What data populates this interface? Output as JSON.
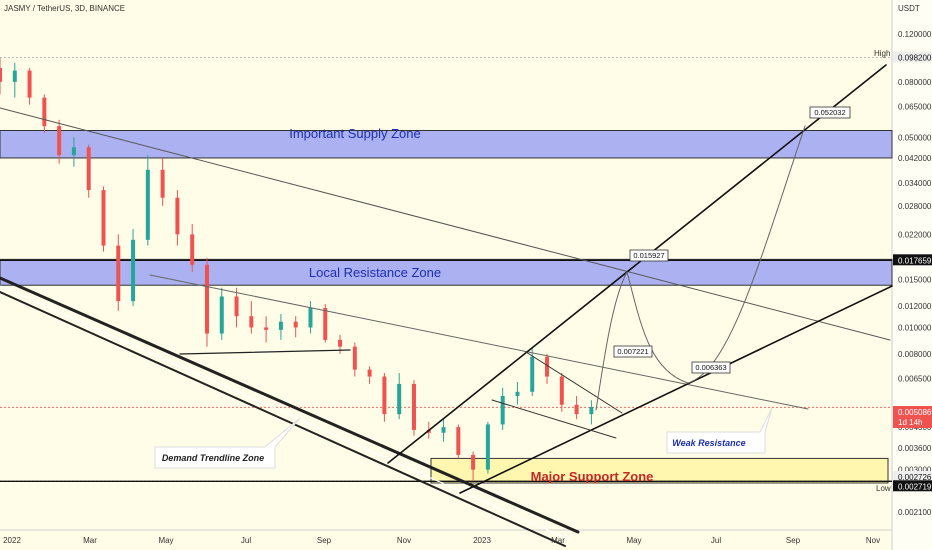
{
  "chart_data": {
    "type": "candlestick",
    "title": "JASMY / TetherUS, 3D, BINANCE",
    "currency": "USDT",
    "y_scale": "log",
    "ylim": [
      0.0018,
      0.16
    ],
    "y_ticks": [
      "0.120000",
      "0.098200",
      "0.080000",
      "0.065000",
      "0.050000",
      "0.042000",
      "0.034000",
      "0.028000",
      "0.022000",
      "0.017659",
      "0.015000",
      "0.012000",
      "0.010000",
      "0.008000",
      "0.006500",
      "0.005086",
      "0.004300",
      "0.003600",
      "0.003000",
      "0.002726",
      "0.002719",
      "0.002100"
    ],
    "x_ticks": [
      "2022",
      "Mar",
      "May",
      "Jul",
      "Sep",
      "Nov",
      "2023",
      "Mar",
      "May",
      "Jul",
      "Sep",
      "Nov"
    ],
    "x_range": [
      "2021-12-01",
      "2023-11-25"
    ],
    "high": {
      "label": "High",
      "value": "0.098200"
    },
    "low": {
      "label": "Low",
      "value": "0.002726"
    },
    "current_price": {
      "value": "0.005086",
      "countdown": "1d 14h"
    },
    "level_badges": [
      {
        "value": "0.017659",
        "color": "#111111"
      },
      {
        "value": "0.002719",
        "color": "#111111"
      }
    ],
    "zones": [
      {
        "label": "Important Supply Zone",
        "from": 0.042,
        "to": 0.053,
        "color": "#9da5f2"
      },
      {
        "label": "Local Resistance Zone",
        "from": 0.0143,
        "to": 0.0178,
        "color": "#9da5f2"
      },
      {
        "label": "Major Support Zone",
        "from": 0.00268,
        "to": 0.0033,
        "color": "#fff7b0"
      }
    ],
    "callouts": [
      {
        "label": "Demand Trendline Zone"
      },
      {
        "label": "Weak Resistance"
      }
    ],
    "projection_points": [
      "0.015927",
      "0.007221",
      "0.006363",
      "0.052032"
    ],
    "up_color": "#26a69a",
    "down_color": "#ef5350",
    "candles": [
      [
        "2021-12-01",
        0.09,
        0.098,
        0.072,
        0.08
      ],
      [
        "2021-12-13",
        0.08,
        0.094,
        0.07,
        0.088
      ],
      [
        "2021-12-25",
        0.088,
        0.09,
        0.066,
        0.07
      ],
      [
        "2022-01-06",
        0.07,
        0.072,
        0.052,
        0.055
      ],
      [
        "2022-01-18",
        0.055,
        0.058,
        0.04,
        0.043
      ],
      [
        "2022-01-30",
        0.043,
        0.05,
        0.039,
        0.046
      ],
      [
        "2022-02-11",
        0.046,
        0.047,
        0.03,
        0.032
      ],
      [
        "2022-02-23",
        0.032,
        0.033,
        0.019,
        0.02
      ],
      [
        "2022-03-07",
        0.02,
        0.022,
        0.0115,
        0.0125
      ],
      [
        "2022-03-19",
        0.0125,
        0.023,
        0.012,
        0.021
      ],
      [
        "2022-03-31",
        0.021,
        0.043,
        0.02,
        0.038
      ],
      [
        "2022-04-12",
        0.038,
        0.042,
        0.028,
        0.03
      ],
      [
        "2022-04-24",
        0.03,
        0.032,
        0.02,
        0.022
      ],
      [
        "2022-05-06",
        0.022,
        0.024,
        0.016,
        0.017
      ],
      [
        "2022-05-18",
        0.017,
        0.018,
        0.0085,
        0.0095
      ],
      [
        "2022-05-30",
        0.0095,
        0.014,
        0.009,
        0.013
      ],
      [
        "2022-06-11",
        0.013,
        0.014,
        0.01,
        0.011
      ],
      [
        "2022-06-23",
        0.011,
        0.0125,
        0.0095,
        0.01
      ],
      [
        "2022-07-05",
        0.01,
        0.011,
        0.0088,
        0.0098
      ],
      [
        "2022-07-17",
        0.0098,
        0.0112,
        0.009,
        0.0105
      ],
      [
        "2022-07-29",
        0.0105,
        0.011,
        0.0092,
        0.01
      ],
      [
        "2022-08-10",
        0.01,
        0.0125,
        0.0095,
        0.0118
      ],
      [
        "2022-08-22",
        0.0118,
        0.0122,
        0.0088,
        0.009
      ],
      [
        "2022-09-03",
        0.009,
        0.0094,
        0.008,
        0.0085
      ],
      [
        "2022-09-15",
        0.0085,
        0.0088,
        0.0066,
        0.007
      ],
      [
        "2022-09-27",
        0.007,
        0.0072,
        0.0062,
        0.0066
      ],
      [
        "2022-10-09",
        0.0066,
        0.0068,
        0.0045,
        0.0048
      ],
      [
        "2022-10-21",
        0.0048,
        0.0068,
        0.0046,
        0.0062
      ],
      [
        "2022-11-02",
        0.0062,
        0.0064,
        0.004,
        0.0042
      ],
      [
        "2022-11-14",
        0.0042,
        0.0045,
        0.0039,
        0.0041
      ],
      [
        "2022-11-26",
        0.0041,
        0.0046,
        0.0038,
        0.0043
      ],
      [
        "2022-12-08",
        0.0043,
        0.0044,
        0.0033,
        0.0034
      ],
      [
        "2022-12-20",
        0.0034,
        0.0035,
        0.00272,
        0.003
      ],
      [
        "2023-01-01",
        0.003,
        0.0045,
        0.0029,
        0.0044
      ],
      [
        "2023-01-13",
        0.0044,
        0.006,
        0.0042,
        0.0056
      ],
      [
        "2023-01-25",
        0.0056,
        0.0063,
        0.0052,
        0.0058
      ],
      [
        "2023-02-06",
        0.0058,
        0.0084,
        0.0056,
        0.0078
      ],
      [
        "2023-02-18",
        0.0078,
        0.008,
        0.0062,
        0.0066
      ],
      [
        "2023-03-02",
        0.0066,
        0.0068,
        0.0049,
        0.0052
      ],
      [
        "2023-03-14",
        0.0052,
        0.0056,
        0.0046,
        0.0048
      ],
      [
        "2023-03-26",
        0.0048,
        0.0054,
        0.0044,
        0.0051
      ]
    ]
  }
}
